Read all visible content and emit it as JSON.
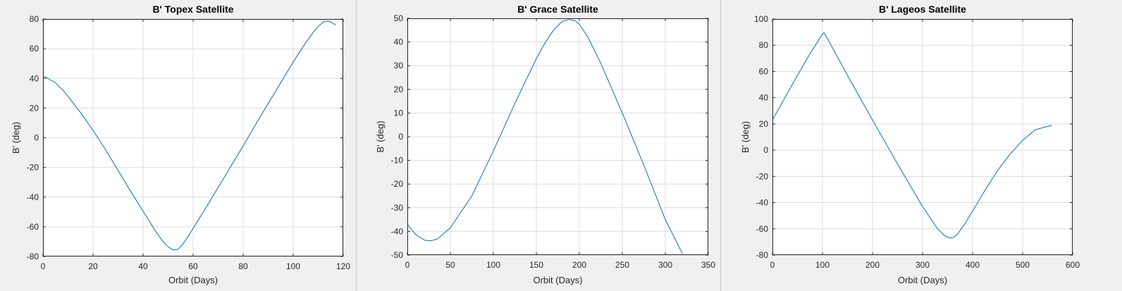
{
  "colors": {
    "figure_bg": "#f0f0f0",
    "axes_bg": "#ffffff",
    "grid": "#dcdcdc",
    "axes_frame": "#262626",
    "line": "#0072bd"
  },
  "chart_data": [
    {
      "type": "line",
      "title": "B' Topex Satellite",
      "xlabel": "Orbit (Days)",
      "ylabel": "B' (deg)",
      "xlim": [
        0,
        120
      ],
      "ylim": [
        -80,
        80
      ],
      "xticks": [
        0,
        20,
        40,
        60,
        80,
        100,
        120
      ],
      "yticks": [
        80,
        60,
        40,
        20,
        0,
        -20,
        -40,
        -60,
        -80
      ],
      "grid": true,
      "series": [
        {
          "x": [
            0,
            2,
            5,
            8,
            10,
            15,
            20,
            25,
            30,
            35,
            40,
            45,
            48,
            50,
            52,
            53,
            54,
            56,
            58,
            60,
            65,
            70,
            75,
            80,
            85,
            90,
            95,
            100,
            105,
            108,
            110,
            112,
            113,
            114,
            115,
            116,
            117
          ],
          "y": [
            41.5,
            40,
            37,
            32,
            28,
            17,
            5,
            -8,
            -22,
            -36,
            -49.5,
            -63,
            -70,
            -73.5,
            -75.5,
            -75.5,
            -75,
            -71.5,
            -66.5,
            -61,
            -47.5,
            -33.5,
            -19.5,
            -5.5,
            9,
            23,
            37,
            51,
            64,
            71,
            75,
            78,
            78.5,
            78.5,
            78,
            77,
            76
          ]
        }
      ]
    },
    {
      "type": "line",
      "title": "B' Grace Satellite",
      "xlabel": "Orbit (Days)",
      "ylabel": "B' (deg)",
      "xlim": [
        0,
        350
      ],
      "ylim": [
        -50,
        50
      ],
      "xticks": [
        0,
        50,
        100,
        150,
        200,
        250,
        300,
        350
      ],
      "yticks": [
        50,
        40,
        30,
        20,
        10,
        0,
        -10,
        -20,
        -30,
        -40,
        -50
      ],
      "grid": true,
      "series": [
        {
          "x": [
            0,
            10,
            20,
            27,
            35,
            50,
            75,
            100,
            125,
            150,
            160,
            170,
            180,
            188,
            195,
            200,
            210,
            225,
            250,
            275,
            300,
            320
          ],
          "y": [
            -37,
            -41.5,
            -43.7,
            -44,
            -43.2,
            -38.5,
            -25,
            -6,
            14,
            33,
            39.5,
            45,
            48.7,
            49.5,
            49,
            47.5,
            42,
            31,
            10,
            -12,
            -35,
            -49.5
          ]
        }
      ]
    },
    {
      "type": "line",
      "title": "B' Lageos Satellite",
      "xlabel": "Orbit (Days)",
      "ylabel": "B' (deg)",
      "xlim": [
        0,
        600
      ],
      "ylim": [
        -80,
        100
      ],
      "xticks": [
        0,
        100,
        200,
        300,
        400,
        500,
        600
      ],
      "yticks": [
        100,
        80,
        60,
        40,
        20,
        0,
        -20,
        -40,
        -60,
        -80
      ],
      "grid": true,
      "series": [
        {
          "x": [
            0,
            25,
            50,
            75,
            100,
            103,
            110,
            150,
            200,
            250,
            300,
            330,
            345,
            355,
            362,
            370,
            385,
            400,
            425,
            450,
            475,
            500,
            525,
            558
          ],
          "y": [
            23,
            40,
            57,
            73.5,
            88.5,
            89.5,
            85,
            57,
            23,
            -10.5,
            -43,
            -60,
            -65.5,
            -67,
            -66.5,
            -64,
            -56,
            -46.5,
            -30.5,
            -15.5,
            -3,
            7.5,
            15.5,
            19
          ]
        }
      ]
    }
  ]
}
